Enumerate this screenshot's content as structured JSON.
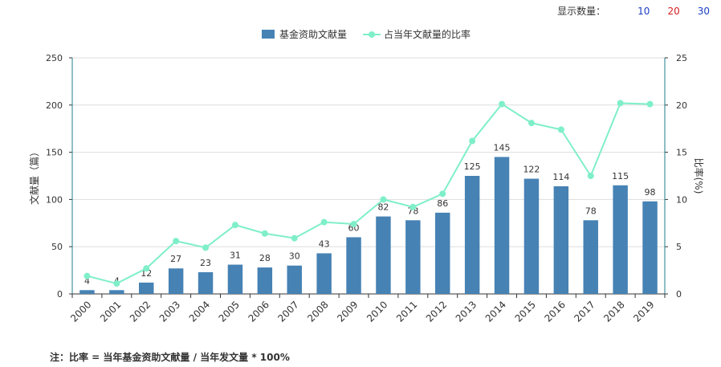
{
  "controls": {
    "label": "显示数量：",
    "options": [
      {
        "value": "10",
        "color": "#1b3fc4"
      },
      {
        "value": "20",
        "color": "#d42020"
      },
      {
        "value": "30",
        "color": "#1b3fc4"
      }
    ]
  },
  "footnote": "注：比率 = 当年基金资助文献量 / 当年发文量 * 100%",
  "chart_data": {
    "type": "bar",
    "categories": [
      "2000",
      "2001",
      "2002",
      "2003",
      "2004",
      "2005",
      "2006",
      "2007",
      "2008",
      "2009",
      "2010",
      "2011",
      "2012",
      "2013",
      "2014",
      "2015",
      "2016",
      "2017",
      "2018",
      "2019"
    ],
    "series": [
      {
        "name": "基金资助文献量",
        "type": "bar",
        "axis": "left",
        "color": "#4682b4",
        "values": [
          4,
          4,
          12,
          27,
          23,
          31,
          28,
          30,
          43,
          60,
          82,
          78,
          86,
          125,
          145,
          122,
          114,
          78,
          115,
          98
        ]
      },
      {
        "name": "占当年文献量的比率",
        "type": "line",
        "axis": "right",
        "color": "#7fefc9",
        "values": [
          1.9,
          1.1,
          2.7,
          5.6,
          4.9,
          7.3,
          6.4,
          5.9,
          7.6,
          7.4,
          10.0,
          9.2,
          10.6,
          16.2,
          20.1,
          18.1,
          17.4,
          12.5,
          20.2,
          20.1
        ]
      }
    ],
    "ylabel": "文献量（篇）",
    "y2label": "比率(%)",
    "ylim": [
      0,
      250
    ],
    "y2lim": [
      0,
      25
    ],
    "yticks": [
      0,
      50,
      100,
      150,
      200,
      250
    ],
    "y2ticks": [
      0,
      5,
      10,
      15,
      20,
      25
    ],
    "grid": true,
    "legend_position": "top-center"
  }
}
